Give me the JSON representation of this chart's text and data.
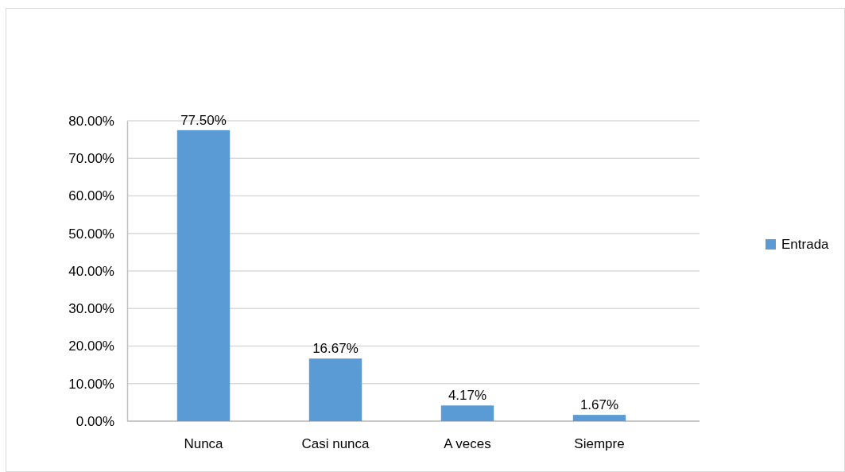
{
  "chart_data": {
    "type": "bar",
    "categories": [
      "Nunca",
      "Casi nunca",
      "A veces",
      "Siempre"
    ],
    "series": [
      {
        "name": "Entrada",
        "color": "#5b9bd5",
        "values": [
          77.5,
          16.67,
          4.17,
          1.67
        ],
        "value_labels": [
          "77.50%",
          "16.67%",
          "4.17%",
          "1.67%"
        ]
      }
    ],
    "ylim": [
      0,
      80
    ],
    "yticks": [
      {
        "value": 0,
        "label": "0.00%"
      },
      {
        "value": 10,
        "label": "10.00%"
      },
      {
        "value": 20,
        "label": "20.00%"
      },
      {
        "value": 30,
        "label": "30.00%"
      },
      {
        "value": 40,
        "label": "40.00%"
      },
      {
        "value": 50,
        "label": "50.00%"
      },
      {
        "value": 60,
        "label": "60.00%"
      },
      {
        "value": 70,
        "label": "70.00%"
      },
      {
        "value": 80,
        "label": "80.00%"
      }
    ],
    "grid": "y",
    "legend": "right"
  }
}
